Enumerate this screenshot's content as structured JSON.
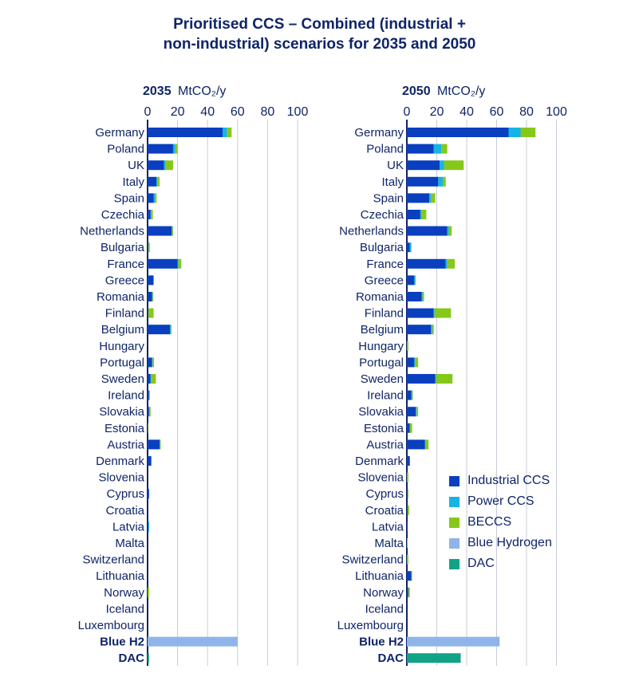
{
  "title_lines": [
    "Prioritised CCS – Combined (industrial +",
    "non-industrial) scenarios for 2035 and 2050"
  ],
  "colors": {
    "Industrial CCS": "#0a3fbf",
    "Power CCS": "#16b4e6",
    "BECCS": "#86c81a",
    "Blue Hydrogen": "#8fb4ea",
    "DAC": "#10a386",
    "grid": "#c8ccd6",
    "axis": "#0f2469"
  },
  "legend": [
    "Industrial CCS",
    "Power CCS",
    "BECCS",
    "Blue Hydrogen",
    "DAC"
  ],
  "chart_data": [
    {
      "type": "bar",
      "orientation": "horizontal",
      "stacked": true,
      "year_label": "2035",
      "unit_label": "MtCO₂/y",
      "xlim": [
        0,
        100
      ],
      "xticks": [
        0,
        20,
        40,
        60,
        80,
        100
      ],
      "grid": true,
      "categories": [
        "Germany",
        "Poland",
        "UK",
        "Italy",
        "Spain",
        "Czechia",
        "Netherlands",
        "Bulgaria",
        "France",
        "Greece",
        "Romania",
        "Finland",
        "Belgium",
        "Hungary",
        "Portugal",
        "Sweden",
        "Ireland",
        "Slovakia",
        "Estonia",
        "Austria",
        "Denmark",
        "Slovenia",
        "Cyprus",
        "Croatia",
        "Latvia",
        "Malta",
        "Switzerland",
        "Lithuania",
        "Norway",
        "Iceland",
        "Luxembourg",
        "Blue H2",
        "DAC"
      ],
      "series": [
        {
          "name": "Industrial CCS",
          "values": [
            50,
            17,
            11,
            6,
            4,
            2,
            16,
            0.5,
            20,
            4,
            3,
            0.5,
            15,
            0,
            3,
            2,
            1,
            1,
            0,
            8,
            2.5,
            0,
            1,
            0,
            0.5,
            0,
            0,
            0,
            0,
            0,
            0,
            0,
            0
          ]
        },
        {
          "name": "Power CCS",
          "values": [
            3,
            1.5,
            1,
            0.5,
            1,
            0.5,
            0.5,
            0,
            0.5,
            0,
            0.3,
            0,
            0.5,
            0,
            0.3,
            0.5,
            0,
            0,
            0,
            0.3,
            0,
            0,
            0,
            0,
            0.5,
            0,
            0,
            0,
            0,
            0,
            0,
            0,
            0
          ]
        },
        {
          "name": "BECCS",
          "values": [
            3,
            1.5,
            5,
            1.5,
            1,
            1,
            0.5,
            1,
            2,
            0,
            0.5,
            3.5,
            0.5,
            0,
            1,
            3,
            0.5,
            1,
            0.3,
            0.5,
            0,
            0,
            0,
            0,
            0,
            0,
            0,
            0,
            1,
            0,
            0,
            0,
            0
          ]
        },
        {
          "name": "Blue Hydrogen",
          "values": [
            0,
            0,
            0,
            0,
            0,
            0,
            0,
            0,
            0,
            0,
            0,
            0,
            0,
            0,
            0,
            0,
            0,
            0,
            0,
            0,
            0,
            0,
            0,
            0,
            0,
            0,
            0,
            0,
            0,
            0,
            0,
            60,
            0
          ]
        },
        {
          "name": "DAC",
          "values": [
            0,
            0,
            0,
            0,
            0,
            0,
            0,
            0,
            0,
            0,
            0,
            0,
            0,
            0,
            0,
            0,
            0,
            0,
            0,
            0,
            0,
            0,
            0,
            0,
            0,
            0,
            0,
            0,
            0,
            0,
            0,
            0,
            1
          ]
        }
      ]
    },
    {
      "type": "bar",
      "orientation": "horizontal",
      "stacked": true,
      "year_label": "2050",
      "unit_label": "MtCO₂/y",
      "xlim": [
        0,
        100
      ],
      "xticks": [
        0,
        20,
        40,
        60,
        80,
        100
      ],
      "grid": true,
      "categories": [
        "Germany",
        "Poland",
        "UK",
        "Italy",
        "Spain",
        "Czechia",
        "Netherlands",
        "Bulgaria",
        "France",
        "Greece",
        "Romania",
        "Finland",
        "Belgium",
        "Hungary",
        "Portugal",
        "Sweden",
        "Ireland",
        "Slovakia",
        "Estonia",
        "Austria",
        "Denmark",
        "Slovenia",
        "Cyprus",
        "Croatia",
        "Latvia",
        "Malta",
        "Switzerland",
        "Lithuania",
        "Norway",
        "Iceland",
        "Luxembourg",
        "Blue H2",
        "DAC"
      ],
      "series": [
        {
          "name": "Industrial CCS",
          "values": [
            68,
            18,
            22,
            21,
            15,
            9,
            27,
            2,
            26,
            5,
            10,
            18,
            16,
            0,
            5,
            19,
            3,
            6,
            2,
            12,
            2,
            0,
            0.5,
            0.5,
            0.5,
            0,
            0,
            3,
            1,
            0,
            0,
            0,
            0
          ]
        },
        {
          "name": "Power CCS",
          "values": [
            8,
            5,
            3,
            3,
            1,
            1,
            1,
            1,
            1,
            0.5,
            0.5,
            0.5,
            1,
            0,
            0.5,
            0.5,
            0.5,
            0.5,
            0,
            0.5,
            0,
            0,
            0,
            0,
            0,
            0,
            0,
            0,
            0,
            0,
            0,
            0,
            0
          ]
        },
        {
          "name": "BECCS",
          "values": [
            10,
            4,
            13,
            2,
            3,
            3,
            2,
            0,
            5,
            0.5,
            1,
            11,
            1,
            1,
            2,
            11,
            0.5,
            1,
            1.5,
            2,
            0,
            1,
            0.5,
            1,
            0,
            0.5,
            1,
            0.5,
            1,
            0,
            0,
            0,
            0
          ]
        },
        {
          "name": "Blue Hydrogen",
          "values": [
            0,
            0,
            0,
            0,
            0,
            0,
            0,
            0,
            0,
            0,
            0,
            0,
            0,
            0,
            0,
            0,
            0,
            0,
            0,
            0,
            0,
            0,
            0,
            0,
            0,
            0,
            0,
            0,
            0,
            0,
            0,
            62,
            0
          ]
        },
        {
          "name": "DAC",
          "values": [
            0,
            0,
            0,
            0,
            0,
            0,
            0,
            0,
            0,
            0,
            0,
            0,
            0,
            0,
            0,
            0,
            0,
            0,
            0,
            0,
            0,
            0,
            0,
            0,
            0,
            0,
            0,
            0,
            0,
            0,
            0,
            0,
            36
          ]
        }
      ]
    }
  ]
}
